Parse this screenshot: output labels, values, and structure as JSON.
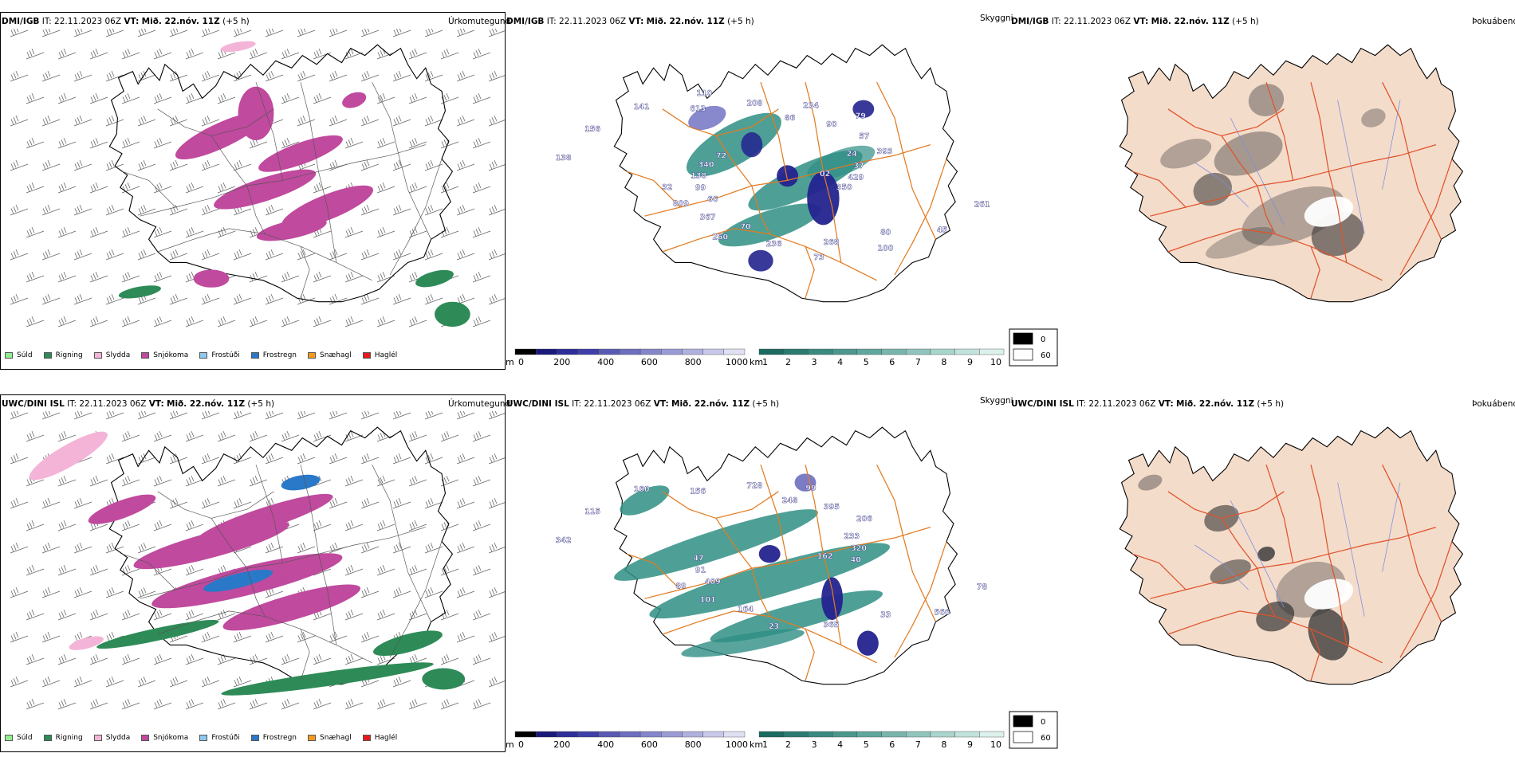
{
  "rows": [
    {
      "model": "DMI/IGB",
      "it_label": "IT:",
      "it_value": "22.11.2023 06Z",
      "vt_label": "VT:",
      "vt_value": "Mið. 22.nóv. 11Z",
      "lead": "(+5 h)"
    },
    {
      "model": "UWC/DINI ISL",
      "it_label": "IT:",
      "it_value": "22.11.2023 06Z",
      "vt_label": "VT:",
      "vt_value": "Mið. 22.nóv. 11Z",
      "lead": "(+5 h)"
    }
  ],
  "panel_titles": {
    "precip": "Úrkomutegund",
    "visibility": "Skyggni",
    "fog": "Þokuábendi"
  },
  "precip_legend": [
    {
      "label": "Súld",
      "color": "#90ee90"
    },
    {
      "label": "Rigning",
      "color": "#2e8b57"
    },
    {
      "label": "Slydda",
      "color": "#f4b4d8"
    },
    {
      "label": "Snjókoma",
      "color": "#c04a9e"
    },
    {
      "label": "Frostúði",
      "color": "#8ec8f0"
    },
    {
      "label": "Frostregn",
      "color": "#2a78c8"
    },
    {
      "label": "Snæhagl",
      "color": "#f29a1e"
    },
    {
      "label": "Haglél",
      "color": "#e41a1c"
    }
  ],
  "height_colorbar": {
    "unit": "m",
    "ticks": [
      "0",
      "200",
      "400",
      "600",
      "800",
      "1000"
    ],
    "colors": [
      "#000000",
      "#1a1a7a",
      "#2e2e9a",
      "#3f3fa8",
      "#5a5ab5",
      "#6e6ec0",
      "#8585cb",
      "#9a9ad5",
      "#b0b0df",
      "#c8c8ea",
      "#e0e0f4"
    ]
  },
  "vis_colorbar": {
    "unit": "km",
    "ticks": [
      "1",
      "2",
      "3",
      "4",
      "5",
      "6",
      "7",
      "8",
      "9",
      "10"
    ],
    "colors": [
      "#1b6b62",
      "#2a7a70",
      "#3a8a80",
      "#4c988e",
      "#60a79d",
      "#78b6ac",
      "#90c5bc",
      "#a8d4cc",
      "#c2e2dc",
      "#dcf0ec"
    ]
  },
  "fog_legend": {
    "values": [
      "0",
      "60"
    ],
    "colors": [
      "#000000",
      "#ffffff"
    ]
  },
  "vis_labels_top": [
    "02",
    "66",
    "86",
    "80",
    "138",
    "24",
    "70",
    "613",
    "261",
    "99",
    "90",
    "268",
    "156",
    "37",
    "367",
    "208",
    "45",
    "138",
    "57",
    "236",
    "141",
    "429",
    "809",
    "234",
    "100",
    "340",
    "393",
    "250",
    "110",
    "350",
    "32",
    "79",
    "73",
    "72"
  ],
  "vis_labels_bottom": [
    "162",
    "409",
    "248",
    "33",
    "342",
    "233",
    "164",
    "156",
    "78",
    "91",
    "395",
    "365",
    "115",
    "320",
    "101",
    "728",
    "566",
    "47",
    "206",
    "23",
    "160",
    "40",
    "89",
    "99"
  ],
  "colors": {
    "snow": "#c04a9e",
    "rain": "#2e8b57",
    "sleet": "#f4b4d8",
    "freezing_rain": "#2a78c8",
    "teal": "#2f8f84",
    "dark_blue": "#23238f",
    "roads": "#e27b20",
    "fog_land": "#f4dccb",
    "fog_roads": "#e0522a",
    "rivers": "#7b8fe0"
  }
}
